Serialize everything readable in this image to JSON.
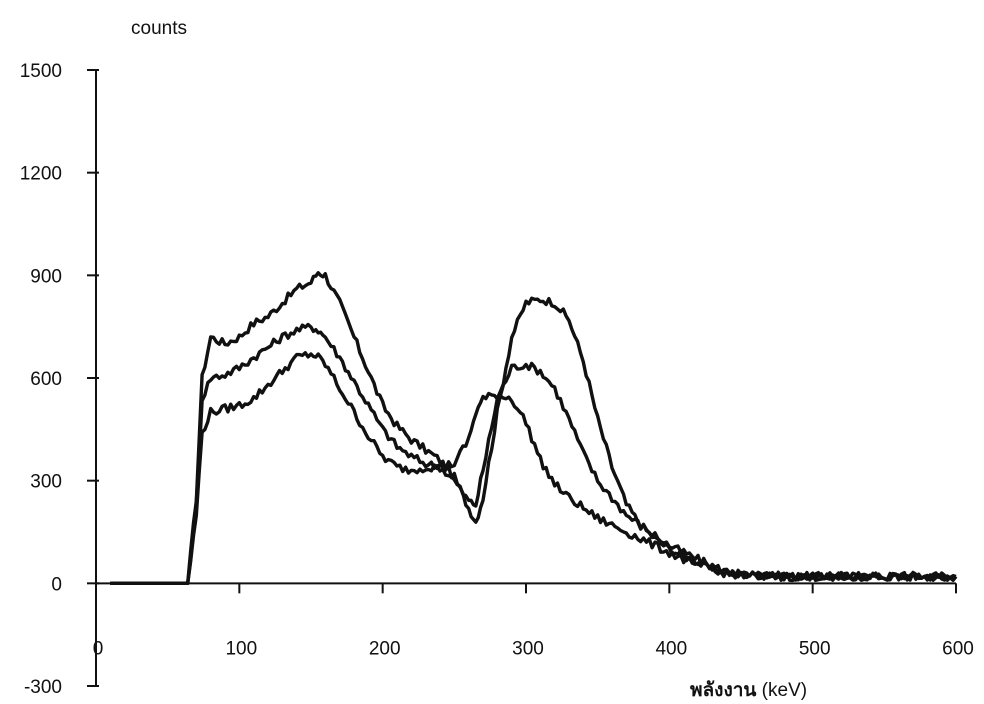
{
  "chart_data": {
    "type": "line",
    "ylabel": "counts",
    "xlabel": "พลังงาน  (keV)",
    "xlim": [
      0,
      600
    ],
    "ylim": [
      -300,
      1500
    ],
    "xticks": [
      0,
      100,
      200,
      300,
      400,
      500,
      600
    ],
    "yticks": [
      -300,
      0,
      300,
      600,
      900,
      1200,
      1500
    ],
    "grid": false,
    "legend": "none",
    "x": [
      10,
      40,
      60,
      64,
      70,
      74,
      80,
      90,
      100,
      110,
      120,
      130,
      140,
      150,
      155,
      160,
      170,
      180,
      190,
      200,
      210,
      220,
      230,
      240,
      250,
      260,
      265,
      270,
      280,
      290,
      300,
      310,
      320,
      330,
      340,
      350,
      360,
      370,
      380,
      390,
      400,
      410,
      420,
      430,
      440,
      450,
      460,
      480,
      500,
      520,
      540,
      560,
      580,
      600
    ],
    "series": [
      {
        "color": "#111111",
        "values": [
          0,
          0,
          0,
          0,
          250,
          600,
          720,
          700,
          720,
          760,
          780,
          820,
          860,
          880,
          910,
          900,
          820,
          720,
          620,
          520,
          460,
          420,
          390,
          360,
          310,
          220,
          180,
          250,
          500,
          720,
          820,
          830,
          820,
          770,
          650,
          480,
          340,
          230,
          170,
          130,
          100,
          80,
          60,
          40,
          30,
          25,
          25,
          20,
          20,
          20,
          20,
          20,
          20,
          20
        ]
      },
      {
        "color": "#111111",
        "values": [
          0,
          0,
          0,
          0,
          230,
          540,
          600,
          610,
          630,
          660,
          690,
          720,
          740,
          750,
          740,
          720,
          660,
          590,
          520,
          450,
          400,
          370,
          350,
          340,
          300,
          240,
          230,
          330,
          540,
          630,
          640,
          620,
          570,
          480,
          380,
          300,
          250,
          200,
          170,
          140,
          110,
          90,
          70,
          50,
          35,
          25,
          22,
          20,
          20,
          20,
          20,
          20,
          20,
          20
        ]
      },
      {
        "color": "#111111",
        "values": [
          0,
          0,
          0,
          0,
          200,
          440,
          500,
          510,
          520,
          540,
          580,
          620,
          660,
          670,
          660,
          640,
          570,
          500,
          430,
          370,
          340,
          330,
          340,
          340,
          350,
          420,
          500,
          540,
          550,
          540,
          470,
          360,
          290,
          250,
          220,
          190,
          170,
          150,
          130,
          110,
          90,
          70,
          55,
          40,
          30,
          25,
          22,
          20,
          20,
          20,
          20,
          20,
          20,
          20
        ]
      }
    ]
  }
}
